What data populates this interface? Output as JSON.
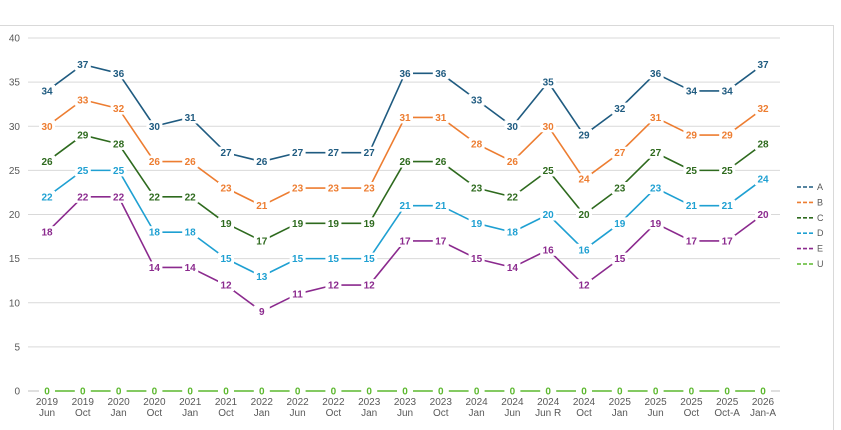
{
  "chart_data": {
    "type": "line",
    "title": "",
    "xlabel": "",
    "ylabel": "",
    "ylim": [
      0,
      40
    ],
    "yticks": [
      0,
      5,
      10,
      15,
      20,
      25,
      30,
      35,
      40
    ],
    "grid": "horizontal",
    "legend_position": "right",
    "categories": [
      [
        "2019",
        "Jun"
      ],
      [
        "2019",
        "Oct"
      ],
      [
        "2020",
        "Jan"
      ],
      [
        "2020",
        "Oct"
      ],
      [
        "2021",
        "Jan"
      ],
      [
        "2021",
        "Oct"
      ],
      [
        "2022",
        "Jan"
      ],
      [
        "2022",
        "Jun"
      ],
      [
        "2022",
        "Oct"
      ],
      [
        "2023",
        "Jan"
      ],
      [
        "2023",
        "Jun"
      ],
      [
        "2023",
        "Oct"
      ],
      [
        "2024",
        "Jan"
      ],
      [
        "2024",
        "Jun"
      ],
      [
        "2024",
        "Jun R"
      ],
      [
        "2024",
        "Oct"
      ],
      [
        "2025",
        "Jan"
      ],
      [
        "2025",
        "Jun"
      ],
      [
        "2025",
        "Oct"
      ],
      [
        "2025",
        "Oct-A"
      ],
      [
        "2026",
        "Jan-A"
      ]
    ],
    "series": [
      {
        "name": "A",
        "color": "#1f5b80",
        "values": [
          34,
          37,
          36,
          30,
          31,
          27,
          26,
          27,
          27,
          27,
          36,
          36,
          33,
          30,
          35,
          29,
          32,
          36,
          34,
          34,
          37
        ]
      },
      {
        "name": "B",
        "color": "#ed7d31",
        "values": [
          30,
          33,
          32,
          26,
          26,
          23,
          21,
          23,
          23,
          23,
          31,
          31,
          28,
          26,
          30,
          24,
          27,
          31,
          29,
          29,
          32
        ]
      },
      {
        "name": "C",
        "color": "#2e6a1e",
        "values": [
          26,
          29,
          28,
          22,
          22,
          19,
          17,
          19,
          19,
          19,
          26,
          26,
          23,
          22,
          25,
          20,
          23,
          27,
          25,
          25,
          28
        ]
      },
      {
        "name": "D",
        "color": "#1fa0d2",
        "values": [
          22,
          25,
          25,
          18,
          18,
          15,
          13,
          15,
          15,
          15,
          21,
          21,
          19,
          18,
          20,
          16,
          19,
          23,
          21,
          21,
          24
        ]
      },
      {
        "name": "E",
        "color": "#8b2a8e",
        "values": [
          18,
          22,
          22,
          14,
          14,
          12,
          9,
          11,
          12,
          12,
          17,
          17,
          15,
          14,
          16,
          12,
          15,
          19,
          17,
          17,
          20
        ]
      },
      {
        "name": "U",
        "color": "#5cb82e",
        "values": [
          0,
          0,
          0,
          0,
          0,
          0,
          0,
          0,
          0,
          0,
          0,
          0,
          0,
          0,
          0,
          0,
          0,
          0,
          0,
          0,
          0
        ]
      }
    ]
  }
}
